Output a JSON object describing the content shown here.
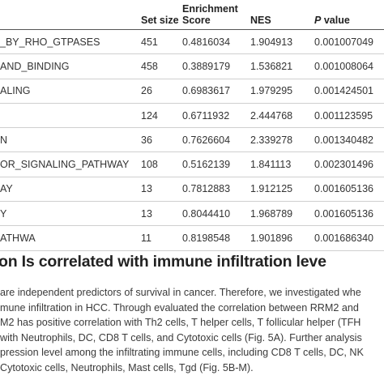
{
  "table": {
    "headers": [
      "",
      "Set size",
      "Enrichment Score",
      "NES",
      "value"
    ],
    "p_label_italic": "P",
    "rows": [
      [
        "_BY_RHO_GTPASES",
        "451",
        "0.4816034",
        "1.904913",
        "0.001007049"
      ],
      [
        "AND_BINDING",
        "458",
        "0.3889179",
        "1.536821",
        "0.001008064"
      ],
      [
        "ALING",
        "26",
        "0.6983617",
        "1.979295",
        "0.001424501"
      ],
      [
        "",
        "124",
        "0.6711932",
        "2.444768",
        "0.001123595"
      ],
      [
        "N",
        "36",
        "0.7626604",
        "2.339278",
        "0.001340482"
      ],
      [
        "OR_SIGNALING_PATHWAY",
        "108",
        "0.5162139",
        "1.841113",
        "0.002301496"
      ],
      [
        "AY",
        "13",
        "0.7812883",
        "1.912125",
        "0.001605136"
      ],
      [
        "Y",
        "13",
        "0.8044410",
        "1.968789",
        "0.001605136"
      ],
      [
        "ATHWA",
        "11",
        "0.8198548",
        "1.901896",
        "0.001686340"
      ]
    ]
  },
  "section_title": "on Is correlated with immune infiltration leve",
  "paragraph_lines": [
    "are independent predictors of survival in cancer. Therefore, we investigated whe",
    "mune infiltration in HCC. Through evaluated the correlation between RRM2 and",
    "M2 has positive correlation with Th2 cells, T helper cells, T follicular helper (TFH",
    "with Neutrophils, DC, CD8 T cells, and Cytotoxic cells (Fig. 5A). Further analysis",
    "pression level among the infiltrating immune cells, including CD8 T cells, DC, NK",
    "Cytotoxic cells, Neutrophils, Mast cells, Tgd (Fig. 5B-M)."
  ]
}
